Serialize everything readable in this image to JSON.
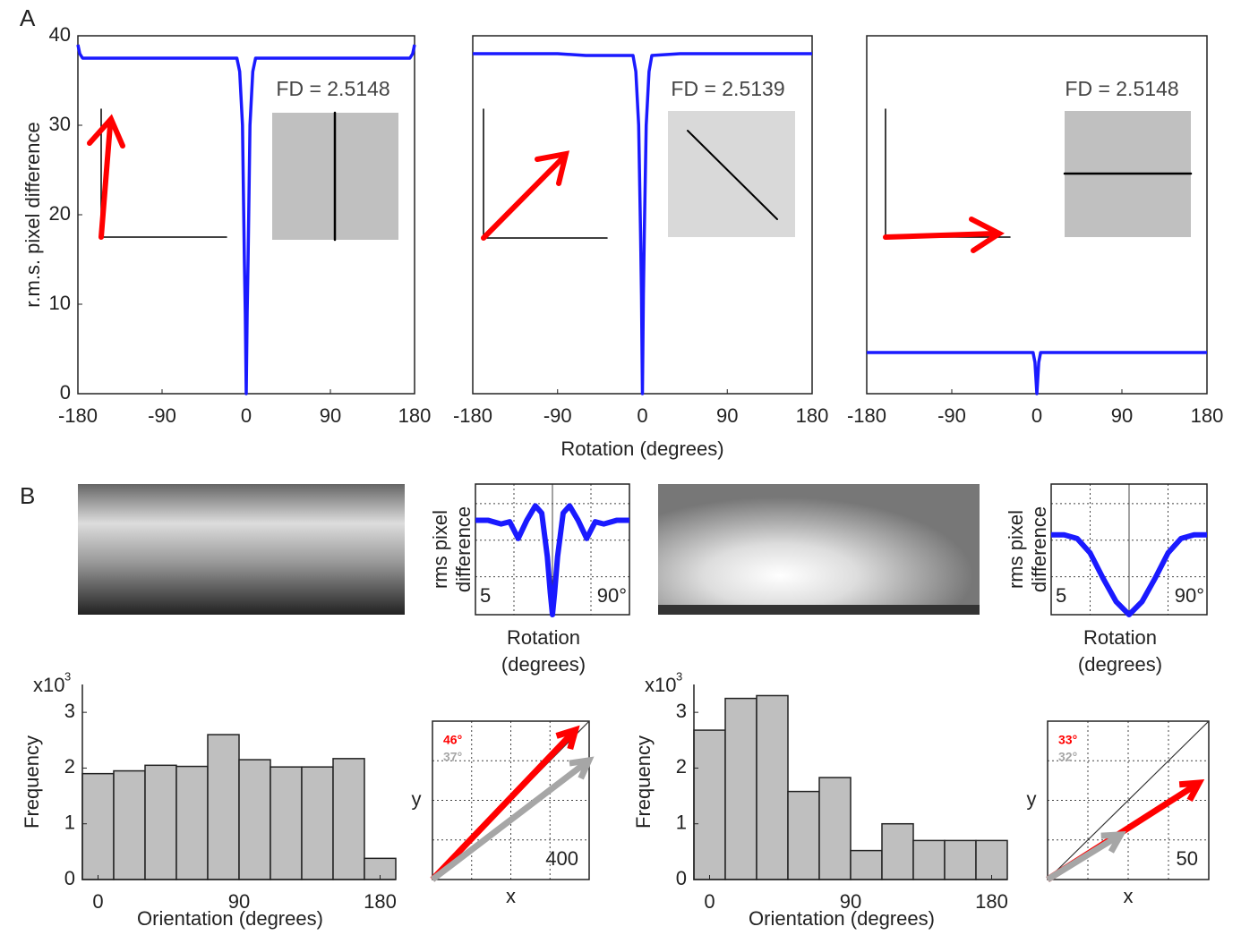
{
  "panels": [
    "A",
    "B"
  ],
  "chart_data": [
    {
      "type": "line",
      "ylabel": "r.m.s. pixel difference",
      "annotation": "FD = 2.5148",
      "xlim": [
        -180,
        180
      ],
      "xticks": [
        -180,
        -90,
        0,
        90,
        180
      ],
      "ylim": [
        0,
        40
      ],
      "yticks": [
        0,
        10,
        20,
        30,
        40
      ],
      "x": [
        -180,
        -178,
        -175,
        -10,
        -7,
        -4,
        -2,
        -1,
        0,
        1,
        2,
        4,
        7,
        10,
        175,
        178,
        180
      ],
      "series": [
        {
          "color": "#1a1aff",
          "values": [
            39,
            38,
            37.5,
            37.5,
            36,
            30,
            15,
            9,
            0,
            9,
            15,
            30,
            36,
            37.5,
            37.5,
            38,
            39
          ]
        }
      ]
    },
    {
      "type": "line",
      "xlabel": "Rotation (degrees)",
      "annotation": "FD = 2.5139",
      "xlim": [
        -180,
        180
      ],
      "xticks": [
        -180,
        -90,
        0,
        90,
        180
      ],
      "ylim": [
        0,
        40
      ],
      "x": [
        -180,
        -90,
        -60,
        -10,
        -7,
        -4,
        -2,
        -1,
        0,
        1,
        2,
        4,
        7,
        10,
        40,
        180
      ],
      "series": [
        {
          "color": "#1a1aff",
          "values": [
            38,
            38,
            37.8,
            37.8,
            36,
            30,
            18,
            11,
            0,
            11,
            18,
            30,
            36,
            37.8,
            38,
            38
          ]
        }
      ]
    },
    {
      "type": "line",
      "annotation": "FD = 2.5148",
      "xlim": [
        -180,
        180
      ],
      "xticks": [
        -180,
        -90,
        0,
        90,
        180
      ],
      "ylim": [
        0,
        40
      ],
      "x": [
        -180,
        -4,
        -2,
        0,
        2,
        4,
        180
      ],
      "series": [
        {
          "color": "#1a1aff",
          "values": [
            4.6,
            4.6,
            3.5,
            0,
            3.5,
            4.6,
            4.6
          ]
        }
      ]
    },
    {
      "type": "line",
      "ylabel": [
        "rms pixel",
        "difference"
      ],
      "xlabel": [
        "Rotation",
        "(degrees)"
      ],
      "annotations": [
        "5",
        "90°"
      ],
      "xlim": [
        -180,
        180
      ],
      "ylim": [
        0,
        18
      ],
      "x": [
        -180,
        -150,
        -120,
        -100,
        -80,
        -60,
        -40,
        -25,
        -12,
        -5,
        0,
        5,
        12,
        25,
        40,
        60,
        80,
        100,
        120,
        150,
        180
      ],
      "series": [
        {
          "color": "#1a1aff",
          "values": [
            13,
            13,
            12.5,
            12.8,
            10.5,
            13,
            15,
            14,
            8,
            3,
            0,
            3,
            8,
            14,
            15,
            13,
            10.5,
            12.8,
            12.5,
            13,
            13
          ]
        }
      ]
    },
    {
      "type": "line",
      "ylabel": [
        "rms pixel",
        "difference"
      ],
      "xlabel": [
        "Rotation",
        "(degrees)"
      ],
      "annotations": [
        "5",
        "90°"
      ],
      "xlim": [
        -180,
        180
      ],
      "ylim": [
        0,
        18
      ],
      "x": [
        -180,
        -150,
        -120,
        -90,
        -60,
        -30,
        0,
        30,
        60,
        90,
        120,
        150,
        180
      ],
      "series": [
        {
          "color": "#1a1aff",
          "values": [
            11,
            11,
            10.5,
            8.5,
            5,
            1.8,
            0,
            1.8,
            5,
            8.5,
            10.5,
            11,
            11
          ]
        }
      ]
    },
    {
      "type": "histogram",
      "xlabel": "Orientation (degrees)",
      "ylabel": "Frequency",
      "y_multiplier_base": "x10",
      "y_multiplier_exp": "3",
      "color": "#bfbfbf",
      "xlim": [
        -10,
        190
      ],
      "xticks": [
        0,
        90,
        180
      ],
      "ylim": [
        0,
        3.5
      ],
      "yticks": [
        0,
        1,
        2,
        3
      ],
      "bins": [
        -10,
        10,
        30,
        50,
        70,
        90,
        110,
        130,
        150,
        170,
        190
      ],
      "values": [
        1.9,
        1.95,
        2.05,
        2.03,
        2.6,
        2.15,
        2.02,
        2.02,
        2.17,
        0.38
      ]
    },
    {
      "type": "histogram",
      "xlabel": "Orientation (degrees)",
      "ylabel": "Frequency",
      "y_multiplier_base": "x10",
      "y_multiplier_exp": "3",
      "color": "#bfbfbf",
      "xlim": [
        -10,
        190
      ],
      "xticks": [
        0,
        90,
        180
      ],
      "ylim": [
        0,
        3.5
      ],
      "yticks": [
        0,
        1,
        2,
        3
      ],
      "bins": [
        -10,
        10,
        30,
        50,
        70,
        90,
        110,
        130,
        150,
        170,
        190
      ],
      "values": [
        2.68,
        3.25,
        3.3,
        1.58,
        1.83,
        0.52,
        1.0,
        0.7,
        0.7,
        0.7
      ]
    },
    {
      "type": "vector",
      "xlabel": "x",
      "ylabel": "y",
      "scale_label": 400,
      "xlim": [
        0,
        1600
      ],
      "ylim": [
        0,
        1600
      ],
      "vectors": [
        {
          "color": "#ff0000",
          "angle": 46,
          "angle_label": "46°",
          "length": 2100
        },
        {
          "color": "#a6a6a6",
          "angle": 37,
          "angle_label": "37°",
          "length": 2000
        }
      ]
    },
    {
      "type": "vector",
      "xlabel": "x",
      "ylabel": "y",
      "scale_label": 50,
      "xlim": [
        0,
        200
      ],
      "ylim": [
        0,
        200
      ],
      "vectors": [
        {
          "color": "#ff0000",
          "angle": 33,
          "angle_label": "33°",
          "length": 224
        },
        {
          "color": "#a6a6a6",
          "angle": 32,
          "angle_label": "32°",
          "length": 107
        }
      ]
    }
  ]
}
